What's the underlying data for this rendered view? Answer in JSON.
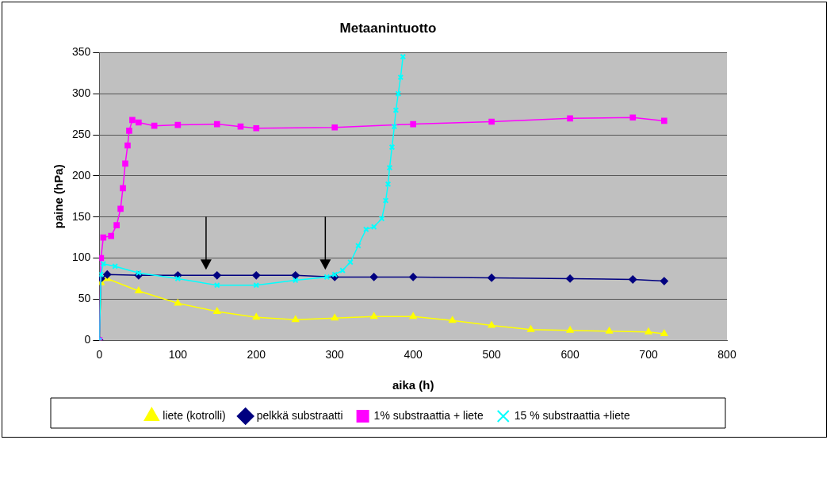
{
  "chart_data": {
    "type": "line",
    "title": "Metaanintuotto",
    "xlabel": "aika (h)",
    "ylabel": "paine (hPa)",
    "xlim": [
      0,
      800
    ],
    "xticks": [
      0,
      100,
      200,
      300,
      400,
      500,
      600,
      700,
      800
    ],
    "ylim": [
      0,
      350
    ],
    "yticks": [
      0,
      50,
      100,
      150,
      200,
      250,
      300,
      350
    ],
    "grid": "y",
    "legend": "bottom",
    "series": [
      {
        "name": "liete (kotrolli)",
        "color": "#ffff00",
        "marker": "triangle",
        "x": [
          0,
          2,
          10,
          50,
          100,
          150,
          200,
          250,
          300,
          350,
          400,
          450,
          500,
          550,
          600,
          650,
          700,
          720
        ],
        "values": [
          0,
          70,
          75,
          60,
          45,
          35,
          28,
          25,
          27,
          29,
          29,
          24,
          18,
          13,
          12,
          11,
          10,
          8
        ]
      },
      {
        "name": "pelkkä substraatti",
        "color": "#000080",
        "marker": "diamond",
        "x": [
          0,
          2,
          10,
          50,
          100,
          150,
          200,
          250,
          300,
          350,
          400,
          500,
          600,
          680,
          720
        ],
        "values": [
          0,
          75,
          80,
          79,
          79,
          79,
          79,
          79,
          77,
          77,
          77,
          76,
          75,
          74,
          72
        ]
      },
      {
        "name": "1% substraattia + liete",
        "color": "#ff00ff",
        "marker": "square",
        "x": [
          0,
          2,
          5,
          15,
          22,
          27,
          30,
          33,
          36,
          38,
          42,
          50,
          70,
          100,
          150,
          180,
          200,
          300,
          400,
          500,
          600,
          680,
          720
        ],
        "values": [
          0,
          100,
          125,
          127,
          140,
          160,
          185,
          215,
          237,
          255,
          268,
          265,
          261,
          262,
          263,
          260,
          258,
          259,
          263,
          266,
          270,
          271,
          267
        ]
      },
      {
        "name": "15 % substraattia +liete",
        "color": "#00ffff",
        "marker": "cross",
        "x": [
          0,
          2,
          5,
          20,
          50,
          100,
          150,
          200,
          250,
          290,
          300,
          310,
          320,
          330,
          340,
          350,
          360,
          365,
          368,
          370,
          373,
          376,
          378,
          381,
          384,
          387
        ],
        "values": [
          0,
          80,
          93,
          90,
          82,
          75,
          67,
          67,
          73,
          77,
          80,
          85,
          95,
          115,
          135,
          138,
          148,
          170,
          190,
          210,
          235,
          260,
          280,
          300,
          320,
          345
        ]
      }
    ]
  }
}
